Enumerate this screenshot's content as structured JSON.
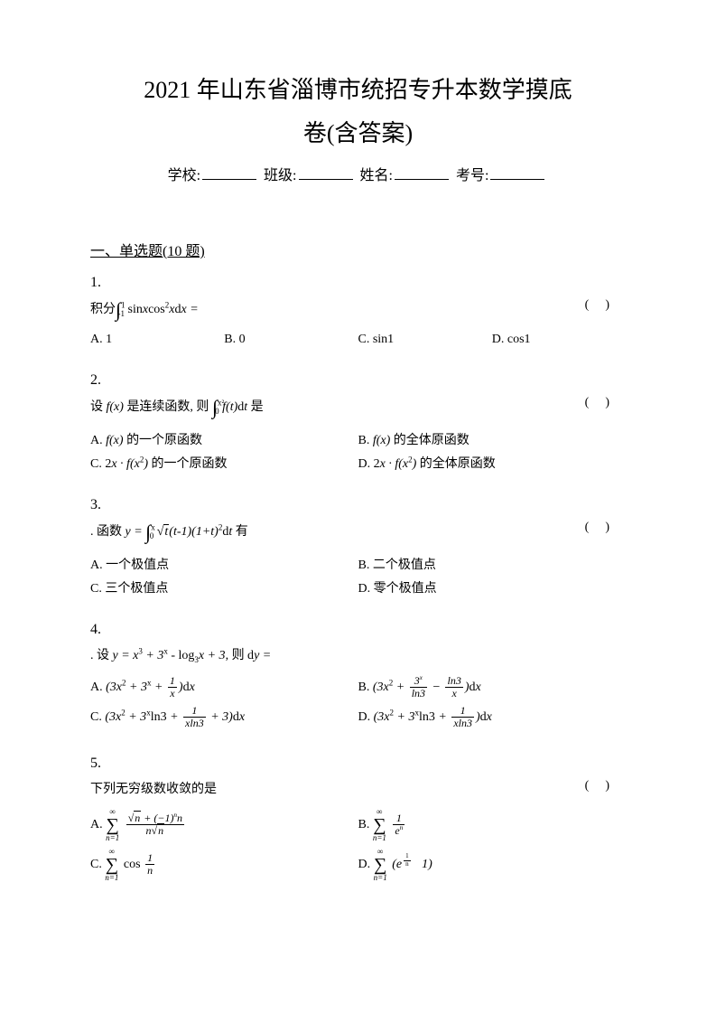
{
  "title_line1": "2021 年山东省淄博市统招专升本数学摸底",
  "title_line2": "卷(含答案)",
  "info": {
    "school_label": "学校:",
    "class_label": "班级:",
    "name_label": "姓名:",
    "exam_no_label": "考号:"
  },
  "section1": {
    "header": "一、单选题(10 题)",
    "q1": {
      "num": "1.",
      "stem_prefix": "积分",
      "stem_math": "∫<sub>-1</sub><sup>1</sup> sin<i>x</i>cos<sup>2</sup><i>x</i>d<i>x</i> =",
      "optA": "A. 1",
      "optB": "B. 0",
      "optC": "C. sin1",
      "optD": "D. cos1"
    },
    "q2": {
      "num": "2.",
      "stem": "设 f(x) 是连续函数, 则 ∫₀^(x²) f(t)dt 是",
      "optA": "A. f(x) 的一个原函数",
      "optB": "B. f(x) 的全体原函数",
      "optC": "C. 2x · f(x²) 的一个原函数",
      "optD": "D. 2x · f(x²) 的全体原函数"
    },
    "q3": {
      "num": "3.",
      "stem": ". 函数 y = ∫₀ˣ √t(t-1)(1+t)²dt 有",
      "optA": "A. 一个极值点",
      "optB": "B. 二个极值点",
      "optC": "C. 三个极值点",
      "optD": "D. 零个极值点"
    },
    "q4": {
      "num": "4.",
      "stem": ". 设 y = x³ + 3ˣ - log₃x + 3, 则 dy =",
      "optA_pre": "A. ",
      "optB_pre": "B. ",
      "optC_pre": "C. ",
      "optD_pre": "D. "
    },
    "q5": {
      "num": "5.",
      "stem": "下列无穷级数收敛的是",
      "optA_pre": "A. ",
      "optB_pre": "B. ",
      "optC_pre": "C. ",
      "optD_pre": "D. "
    }
  },
  "paren": "()"
}
